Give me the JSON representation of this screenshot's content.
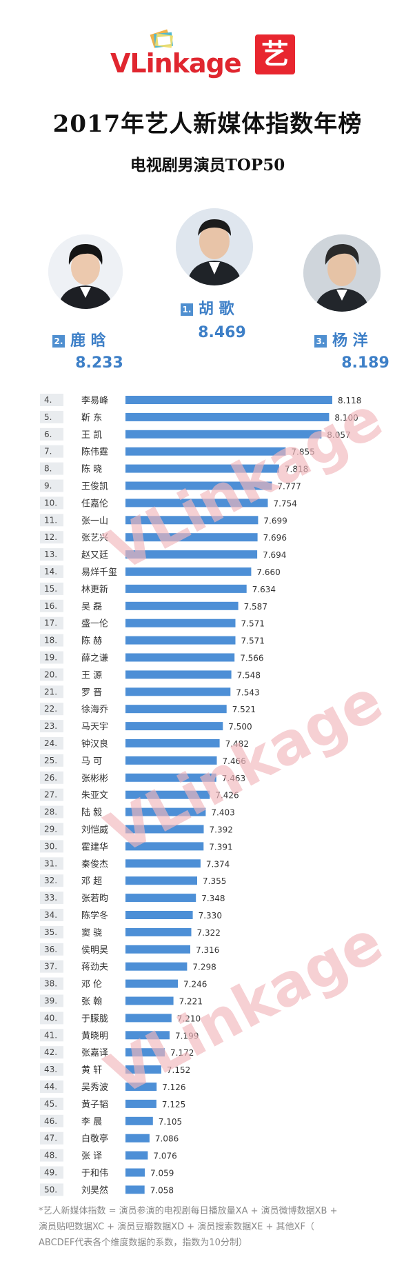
{
  "header": {
    "logo_text": "VLinkage",
    "badge_text": "艺",
    "title": "2017年艺人新媒体指数年榜",
    "subtitle": "电视剧男演员TOP50"
  },
  "top3": [
    {
      "rank": "1.",
      "name": "胡 歌",
      "score": "8.469"
    },
    {
      "rank": "2.",
      "name": "鹿 晗",
      "score": "8.233"
    },
    {
      "rank": "3.",
      "name": "杨 洋",
      "score": "8.189"
    }
  ],
  "chart_data": {
    "type": "bar",
    "orientation": "horizontal",
    "ranks": [
      "4.",
      "5.",
      "6.",
      "7.",
      "8.",
      "9.",
      "10.",
      "11.",
      "12.",
      "13.",
      "14.",
      "15.",
      "16.",
      "17.",
      "18.",
      "19.",
      "20.",
      "21.",
      "22.",
      "23.",
      "24.",
      "25.",
      "26.",
      "27.",
      "28.",
      "29.",
      "30.",
      "31.",
      "32.",
      "33.",
      "34.",
      "35.",
      "36.",
      "37.",
      "38.",
      "39.",
      "40.",
      "41.",
      "42.",
      "43.",
      "44.",
      "45.",
      "46.",
      "47.",
      "48.",
      "49.",
      "50."
    ],
    "categories": [
      "李易峰",
      "靳 东",
      "王 凯",
      "陈伟霆",
      "陈 晓",
      "王俊凯",
      "任嘉伦",
      "张一山",
      "张艺兴",
      "赵又廷",
      "易烊千玺",
      "林更新",
      "吴 磊",
      "盛一伦",
      "陈 赫",
      "薛之谦",
      "王 源",
      "罗 晋",
      "徐海乔",
      "马天宇",
      "钟汉良",
      "马 可",
      "张彬彬",
      "朱亚文",
      "陆 毅",
      "刘恺威",
      "霍建华",
      "秦俊杰",
      "邓 超",
      "张若昀",
      "陈学冬",
      "窦 骁",
      "侯明昊",
      "蒋劲夫",
      "邓 伦",
      "张 翰",
      "于朦胧",
      "黄晓明",
      "张嘉译",
      "黄 轩",
      "吴秀波",
      "黄子韬",
      "李 晨",
      "白敬亭",
      "张 译",
      "于和伟",
      "刘昊然"
    ],
    "labels": [
      "8.118",
      "8.100",
      "8.057",
      "7.855",
      "7.818",
      "7.777",
      "7.754",
      "7.699",
      "7.696",
      "7.694",
      "7.660",
      "7.634",
      "7.587",
      "7.571",
      "7.571",
      "7.566",
      "7.548",
      "7.543",
      "7.521",
      "7.500",
      "7.482",
      "7.466",
      "7.463",
      "7.426",
      "7.403",
      "7.392",
      "7.391",
      "7.374",
      "7.355",
      "7.348",
      "7.330",
      "7.322",
      "7.316",
      "7.298",
      "7.246",
      "7.221",
      "7.210",
      "7.199",
      "7.172",
      "7.152",
      "7.126",
      "7.125",
      "7.105",
      "7.086",
      "7.076",
      "7.059",
      "7.058"
    ],
    "values": [
      8.118,
      8.1,
      8.057,
      7.855,
      7.818,
      7.777,
      7.754,
      7.699,
      7.696,
      7.694,
      7.66,
      7.634,
      7.587,
      7.571,
      7.571,
      7.566,
      7.548,
      7.543,
      7.521,
      7.5,
      7.482,
      7.466,
      7.463,
      7.426,
      7.403,
      7.392,
      7.391,
      7.374,
      7.355,
      7.348,
      7.33,
      7.322,
      7.316,
      7.298,
      7.246,
      7.221,
      7.21,
      7.199,
      7.172,
      7.152,
      7.126,
      7.125,
      7.105,
      7.086,
      7.076,
      7.059,
      7.058
    ],
    "bar_color": "#4d8fd6"
  },
  "watermark": "VLinkage",
  "footnote": {
    "line1": "*艺人新媒体指数 = 演员参演的电视剧每日播放量XA + 演员微博数据XB +",
    "line2": "演员贴吧数据XC + 演员豆瓣数据XD + 演员搜索数据XE + 其他XF（",
    "line3": "ABCDEF代表各个维度数据的系数，指数为10分制）"
  }
}
